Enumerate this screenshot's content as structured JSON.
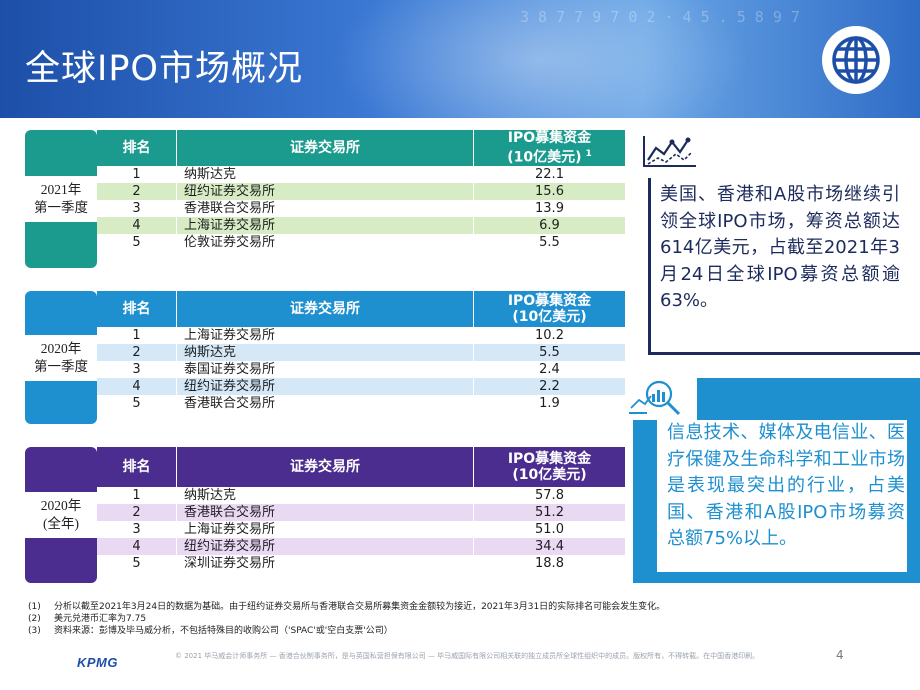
{
  "page": {
    "title": "全球IPO市场概况",
    "page_number": "4",
    "logo_text": "KPMG",
    "copyright": "© 2021 毕马威会计师事务所 — 香港合伙制事务所，是与英国私营担保有限公司 — 毕马威国际有限公司相关联的独立成员所全球性组织中的成员。版权所有，不得转载。在中国香港印刷。",
    "colors": {
      "teal": "#1a9b8e",
      "blue": "#1e8fcf",
      "purple": "#4b2c8f",
      "navy": "#1d2b5c"
    }
  },
  "tables": [
    {
      "period_line1": "2021年",
      "period_line2": "第一季度",
      "headers": {
        "rank": "排名",
        "exchange": "证券交易所",
        "proceeds_line1": "IPO募集资金",
        "proceeds_line2": "(10亿美元)",
        "proceeds_note": "1"
      },
      "rows": [
        {
          "rank": "1",
          "exchange": "纳斯达克",
          "value": "22.1"
        },
        {
          "rank": "2",
          "exchange": "纽约证券交易所",
          "value": "15.6"
        },
        {
          "rank": "3",
          "exchange": "香港联合交易所",
          "value": "13.9"
        },
        {
          "rank": "4",
          "exchange": "上海证券交易所",
          "value": "6.9"
        },
        {
          "rank": "5",
          "exchange": "伦敦证券交易所",
          "value": "5.5"
        }
      ]
    },
    {
      "period_line1": "2020年",
      "period_line2": "第一季度",
      "headers": {
        "rank": "排名",
        "exchange": "证券交易所",
        "proceeds_line1": "IPO募集资金",
        "proceeds_line2": "(10亿美元)"
      },
      "rows": [
        {
          "rank": "1",
          "exchange": "上海证券交易所",
          "value": "10.2"
        },
        {
          "rank": "2",
          "exchange": "纳斯达克",
          "value": "5.5"
        },
        {
          "rank": "3",
          "exchange": "泰国证券交易所",
          "value": "2.4"
        },
        {
          "rank": "4",
          "exchange": "纽约证券交易所",
          "value": "2.2"
        },
        {
          "rank": "5",
          "exchange": "香港联合交易所",
          "value": "1.9"
        }
      ]
    },
    {
      "period_line1": "2020年",
      "period_line2": "(全年)",
      "headers": {
        "rank": "排名",
        "exchange": "证券交易所",
        "proceeds_line1": "IPO募集资金",
        "proceeds_line2": "(10亿美元)"
      },
      "rows": [
        {
          "rank": "1",
          "exchange": "纳斯达克",
          "value": "57.8"
        },
        {
          "rank": "2",
          "exchange": "香港联合交易所",
          "value": "51.2"
        },
        {
          "rank": "3",
          "exchange": "上海证券交易所",
          "value": "51.0"
        },
        {
          "rank": "4",
          "exchange": "纽约证券交易所",
          "value": "34.4"
        },
        {
          "rank": "5",
          "exchange": "深圳证券交易所",
          "value": "18.8"
        }
      ]
    }
  ],
  "callouts": {
    "first": "美国、香港和A股市场继续引领全球IPO市场，筹资总额达614亿美元，占截至2021年3月24日全球IPO募资总额逾63%。",
    "second": "信息技术、媒体及电信业、医疗保健及生命科学和工业市场是表现最突出的行业，占美国、香港和A股IPO市场募资总额75%以上。"
  },
  "footnotes": [
    {
      "key": "(1)",
      "text": "分析以截至2021年3月24日的数据为基础。由于纽约证券交易所与香港联合交易所募集资金金额较为接近，2021年3月31日的实际排名可能会发生变化。"
    },
    {
      "key": "(2)",
      "text": "美元兑港币汇率为7.75"
    },
    {
      "key": "(3)",
      "text": "资料来源：彭博及毕马威分析，不包括特殊目的收购公司（'SPAC'或'空白支票'公司）"
    }
  ]
}
